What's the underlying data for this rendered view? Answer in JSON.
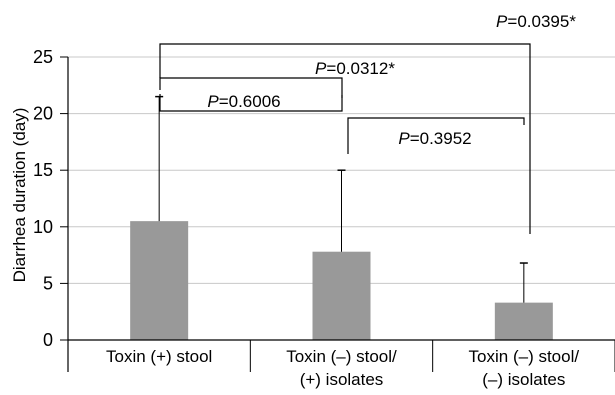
{
  "chart_data": {
    "type": "bar",
    "title": "",
    "xlabel": "",
    "ylabel": "Diarrhea duration (day)",
    "ylim": [
      0,
      25
    ],
    "yticks": [
      0,
      5,
      10,
      15,
      20,
      25
    ],
    "grid": true,
    "legend": "none",
    "bar_color": "#999999",
    "categories": [
      [
        "Toxin (+) stool"
      ],
      [
        "Toxin (–) stool/",
        "(+) isolates"
      ],
      [
        "Toxin (–) stool/",
        "(–) isolates"
      ]
    ],
    "values": [
      10.5,
      7.8,
      3.3
    ],
    "error_upper": [
      21.5,
      15.0,
      6.8
    ],
    "comparisons": [
      {
        "from": 0,
        "to": 1,
        "p_label": "P",
        "p_value": "=0.6006"
      },
      {
        "from": 1,
        "to": 2,
        "p_label": "P",
        "p_value": "=0.3952"
      },
      {
        "from": 0,
        "to": 1,
        "p_label": "P",
        "p_value": "=0.0312*"
      },
      {
        "from": 0,
        "to": 2,
        "p_label": "P",
        "p_value": "=0.0395*"
      }
    ]
  }
}
